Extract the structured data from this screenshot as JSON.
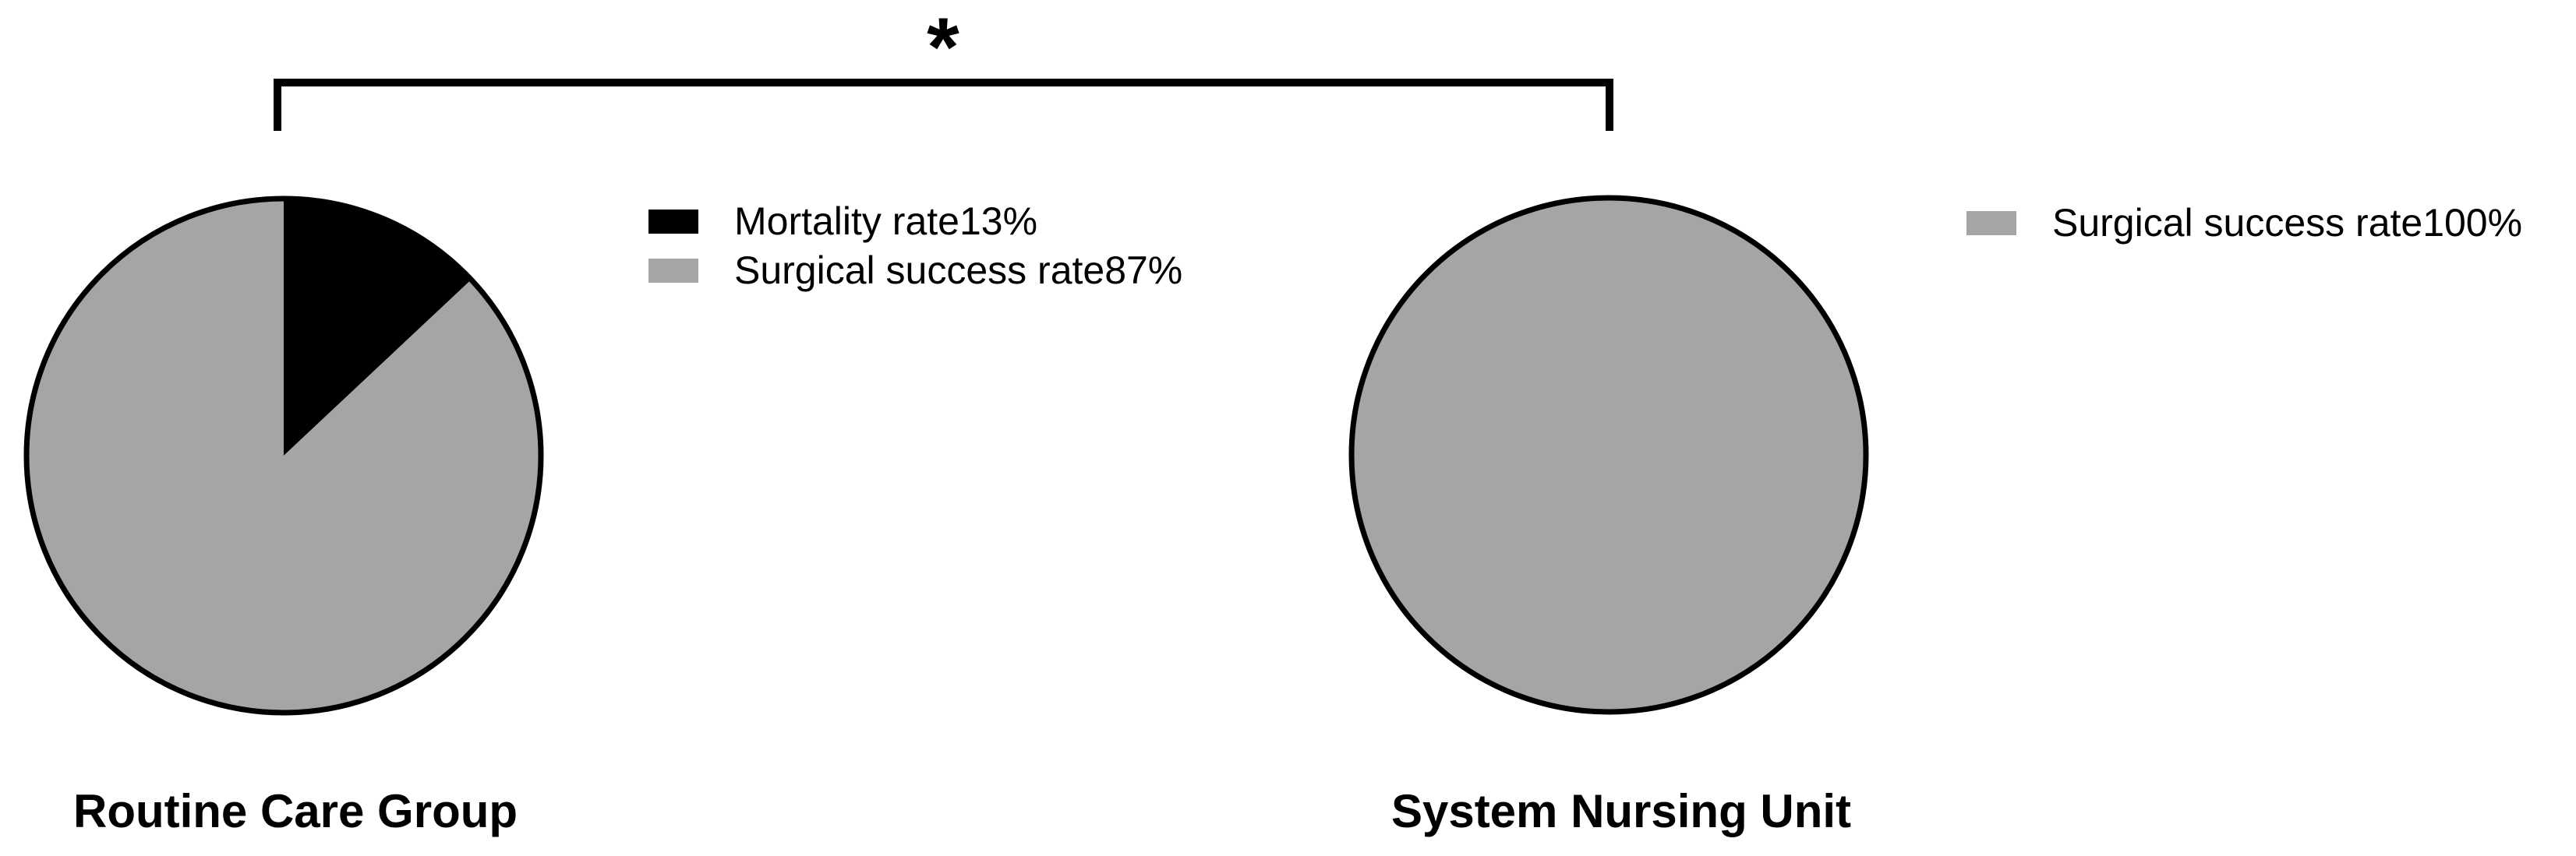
{
  "figure": {
    "background": "#ffffff",
    "outline_color": "#000000"
  },
  "annotation": {
    "symbol": "*",
    "meaning": "significance bracket connecting Routine Care Group and System Nursing Unit"
  },
  "chart_data": [
    {
      "type": "pie",
      "title": "Routine Care Group",
      "start_angle": "12 o'clock",
      "direction": "clockwise",
      "outline_color": "#000000",
      "legend_position": "right",
      "slices": [
        {
          "label": "Mortality rate",
          "value_pct": 13,
          "color": "#000000",
          "legend_label": "Mortality rate13%"
        },
        {
          "label": "Surgical success rate",
          "value_pct": 87,
          "color": "#A5A5A7",
          "legend_label": "Surgical success rate87%"
        }
      ]
    },
    {
      "type": "pie",
      "title": "System Nursing Unit",
      "start_angle": "12 o'clock",
      "direction": "clockwise",
      "outline_color": "#000000",
      "legend_position": "right",
      "slices": [
        {
          "label": "Surgical success rate",
          "value_pct": 100,
          "color": "#A5A5A7",
          "legend_label": "Surgical success rate100%"
        }
      ]
    }
  ]
}
